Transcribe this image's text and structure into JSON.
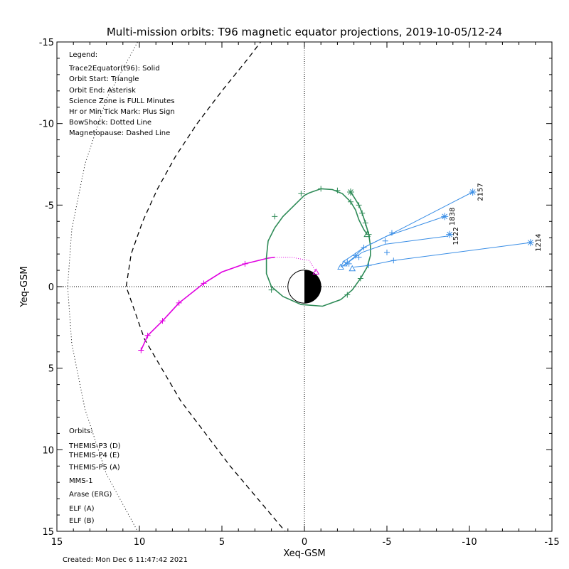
{
  "title": "Multi-mission orbits: T96 magnetic equator projections, 2019-10-05/12-24",
  "xlabel": "Xeq-GSM",
  "ylabel": "Yeq-GSM",
  "created": "Created: Mon Dec  6 11:47:42 2021",
  "legend": {
    "heading": "Legend:",
    "lines": [
      "Trace2Equator(t96): Solid",
      "Orbit Start: Triangle",
      "Orbit End: Asterisk",
      "Science Zone is FULL Minutes",
      "Hr or Min Tick Mark: Plus Sign",
      "BowShock: Dotted Line",
      "Magnetopause: Dashed Line"
    ]
  },
  "orbits_legend": {
    "heading": "Orbits:",
    "items": [
      {
        "label": "THEMIS-P3 (D)",
        "color": "#00e5e5"
      },
      {
        "label": "THEMIS-P4 (E)",
        "color": "#0000cc"
      },
      {
        "label": "THEMIS-P5 (A)",
        "color": "#e000e0"
      },
      {
        "label": "MMS-1",
        "color": "#000000"
      },
      {
        "label": "Arase (ERG)",
        "color": "#2e8b57"
      },
      {
        "label": "ELF (A)",
        "color": "#3a8ee6"
      },
      {
        "label": "ELF (B)",
        "color": "#d40000"
      }
    ]
  },
  "chart_data": {
    "type": "line",
    "xlim": [
      15,
      -15
    ],
    "ylim": [
      -15,
      15
    ],
    "x_ticks": [
      15,
      10,
      5,
      0,
      -5,
      -10,
      -15
    ],
    "x_tick_labels": [
      "15",
      "10",
      "5",
      "0",
      "-5",
      "-10",
      "-15"
    ],
    "y_ticks": [
      -15,
      -10,
      -5,
      0,
      5,
      10,
      15
    ],
    "y_tick_labels": [
      "-15",
      "-10",
      "-5",
      "0",
      "5",
      "10",
      "15"
    ],
    "bow_shock": [
      [
        10,
        15.2
      ],
      [
        12,
        11.5
      ],
      [
        13.3,
        7.5
      ],
      [
        14.1,
        3.5
      ],
      [
        14.35,
        0
      ],
      [
        14.1,
        -3.5
      ],
      [
        13.3,
        -7.5
      ],
      [
        12,
        -11.5
      ],
      [
        10,
        -15.2
      ]
    ],
    "magnetopause": [
      [
        1,
        15.2
      ],
      [
        4.5,
        11
      ],
      [
        7.5,
        7
      ],
      [
        9.7,
        3.2
      ],
      [
        10.8,
        0
      ],
      [
        10.5,
        -2
      ],
      [
        9.8,
        -4
      ],
      [
        8.9,
        -6
      ],
      [
        7.8,
        -8
      ],
      [
        6.5,
        -10
      ],
      [
        5,
        -12
      ],
      [
        3.4,
        -14
      ],
      [
        2.5,
        -15.2
      ]
    ],
    "series": [
      {
        "name": "THEMIS-P5 (A)",
        "color": "#e000e0",
        "solid": [
          [
            9.9,
            3.9
          ],
          [
            9.5,
            3.0
          ],
          [
            8.6,
            2.1
          ],
          [
            7.6,
            1.0
          ],
          [
            6.1,
            -0.2
          ],
          [
            5.0,
            -0.9
          ],
          [
            3.6,
            -1.4
          ],
          [
            2.2,
            -1.75
          ],
          [
            1.8,
            -1.8
          ]
        ],
        "dotted": [
          [
            1.8,
            -1.8
          ],
          [
            0.8,
            -1.8
          ],
          [
            -0.3,
            -1.6
          ],
          [
            -0.7,
            -0.9
          ]
        ],
        "ticks": [
          [
            9.9,
            3.9
          ],
          [
            9.5,
            3.0
          ],
          [
            8.6,
            2.1
          ],
          [
            7.6,
            1.0
          ],
          [
            6.1,
            -0.2
          ],
          [
            3.6,
            -1.4
          ]
        ],
        "start": [
          -0.7,
          -0.9
        ],
        "end": null
      },
      {
        "name": "Arase (ERG)",
        "color": "#2e8b57",
        "solid": [
          [
            -2.8,
            -5.8
          ],
          [
            -3.0,
            -5.5
          ],
          [
            -3.3,
            -5.0
          ],
          [
            -3.5,
            -4.5
          ],
          [
            -3.7,
            -3.9
          ],
          [
            -3.9,
            -3.2
          ],
          [
            -4.0,
            -2.5
          ],
          [
            -4.0,
            -1.9
          ],
          [
            -3.8,
            -1.2
          ],
          [
            -3.4,
            -0.5
          ],
          [
            -2.9,
            0.2
          ],
          [
            -2.2,
            0.8
          ],
          [
            -1.1,
            1.2
          ],
          [
            0.2,
            1.1
          ],
          [
            1.3,
            0.6
          ],
          [
            2.0,
            0.0
          ],
          [
            2.3,
            -0.8
          ],
          [
            2.3,
            -1.8
          ],
          [
            2.2,
            -2.8
          ],
          [
            1.8,
            -3.6
          ],
          [
            1.3,
            -4.3
          ],
          [
            0.6,
            -5.0
          ],
          [
            0,
            -5.6
          ],
          [
            -0.3,
            -5.75
          ],
          [
            -1.0,
            -6.0
          ],
          [
            -1.7,
            -5.95
          ],
          [
            -2.3,
            -5.7
          ],
          [
            -2.8,
            -5.2
          ],
          [
            -3.1,
            -4.7
          ],
          [
            -3.3,
            -4.1
          ],
          [
            -3.6,
            -3.5
          ],
          [
            -3.8,
            -3.2
          ]
        ],
        "ticks": [
          [
            -2.8,
            -5.8
          ],
          [
            -3.3,
            -5.0
          ],
          [
            -3.5,
            -4.5
          ],
          [
            -3.7,
            -3.9
          ],
          [
            -3.9,
            -3.2
          ],
          [
            -3.4,
            -0.5
          ],
          [
            -2.6,
            0.5
          ],
          [
            2.0,
            0.2
          ],
          [
            1.8,
            -4.3
          ],
          [
            0.2,
            -5.7
          ],
          [
            -1.0,
            -6.0
          ],
          [
            -2.0,
            -5.9
          ],
          [
            -2.8,
            -5.2
          ]
        ],
        "start": [
          -3.8,
          -3.2
        ],
        "end": [
          -2.8,
          -5.8
        ]
      }
    ],
    "elf_tracks": [
      {
        "label": "2157",
        "color": "#3a8ee6",
        "points": [
          [
            -2.3,
            -1.5
          ],
          [
            -2.9,
            -1.9
          ],
          [
            -3.6,
            -2.4
          ],
          [
            -5.4,
            -3.3
          ],
          [
            -10.2,
            -5.8
          ]
        ]
      },
      {
        "label": "1838",
        "color": "#3a8ee6",
        "points": [
          [
            -2.4,
            -1.3
          ],
          [
            -3.0,
            -1.8
          ],
          [
            -3.6,
            -2.4
          ],
          [
            -5.0,
            -3.1
          ],
          [
            -8.5,
            -4.3
          ]
        ]
      },
      {
        "label": "1522",
        "color": "#3a8ee6",
        "points": [
          [
            -2.2,
            -1.2
          ],
          [
            -2.8,
            -1.6
          ],
          [
            -3.5,
            -2.1
          ],
          [
            -4.9,
            -2.6
          ],
          [
            -8.7,
            -3.1
          ]
        ]
      },
      {
        "label": "1214",
        "color": "#3a8ee6",
        "points": [
          [
            -3.0,
            -1.2
          ],
          [
            -3.9,
            -1.3
          ],
          [
            -5.4,
            -1.6
          ],
          [
            -13.7,
            -2.7
          ]
        ]
      }
    ],
    "elf_tick_points": [
      [
        -2.6,
        -1.5
      ],
      [
        -3.1,
        -1.9
      ],
      [
        -3.6,
        -2.4
      ],
      [
        -5.3,
        -3.3
      ],
      [
        -4.9,
        -2.8
      ],
      [
        -5.0,
        -2.1
      ],
      [
        -3.9,
        -1.3
      ],
      [
        -5.4,
        -1.6
      ],
      [
        -2.7,
        -1.4
      ],
      [
        -3.3,
        -1.8
      ]
    ],
    "elf_start_points": [
      [
        -2.2,
        -1.2
      ],
      [
        -2.9,
        -1.1
      ],
      [
        -2.4,
        -1.4
      ]
    ],
    "elf_end_points": [
      [
        -10.2,
        -5.8
      ],
      [
        -8.5,
        -4.3
      ],
      [
        -8.8,
        -3.2
      ],
      [
        -13.7,
        -2.7
      ]
    ]
  }
}
